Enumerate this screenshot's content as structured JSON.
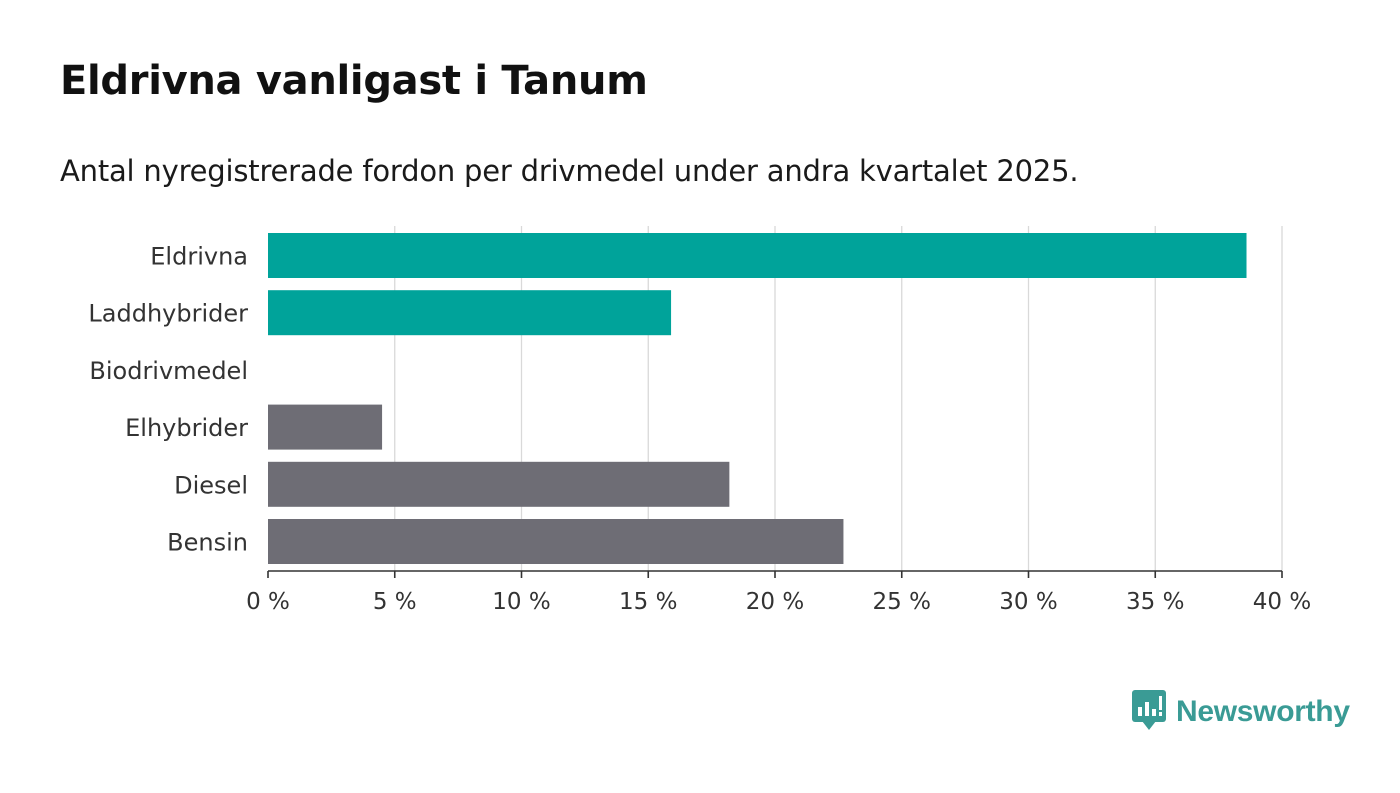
{
  "page": {
    "title": "Eldrivna vanligast i Tanum",
    "subtitle": "Antal nyregistrerade fordon per drivmedel under andra kvartalet 2025."
  },
  "brand": {
    "name": "Newsworthy",
    "icon": "newsworthy-logo-icon",
    "color": "#3a9b95"
  },
  "chart_data": {
    "type": "bar",
    "orientation": "horizontal",
    "categories": [
      "Eldrivna",
      "Laddhybrider",
      "Biodrivmedel",
      "Elhybrider",
      "Diesel",
      "Bensin"
    ],
    "values": [
      38.6,
      15.9,
      0,
      4.5,
      18.2,
      22.7
    ],
    "colors": [
      "#00a39a",
      "#00a39a",
      "#00a39a",
      "#6e6d75",
      "#6e6d75",
      "#6e6d75"
    ],
    "xlim": [
      0,
      40
    ],
    "xticks": [
      0,
      5,
      10,
      15,
      20,
      25,
      30,
      35,
      40
    ],
    "tick_suffix": " %",
    "grid": true,
    "xlabel": "",
    "ylabel": ""
  }
}
